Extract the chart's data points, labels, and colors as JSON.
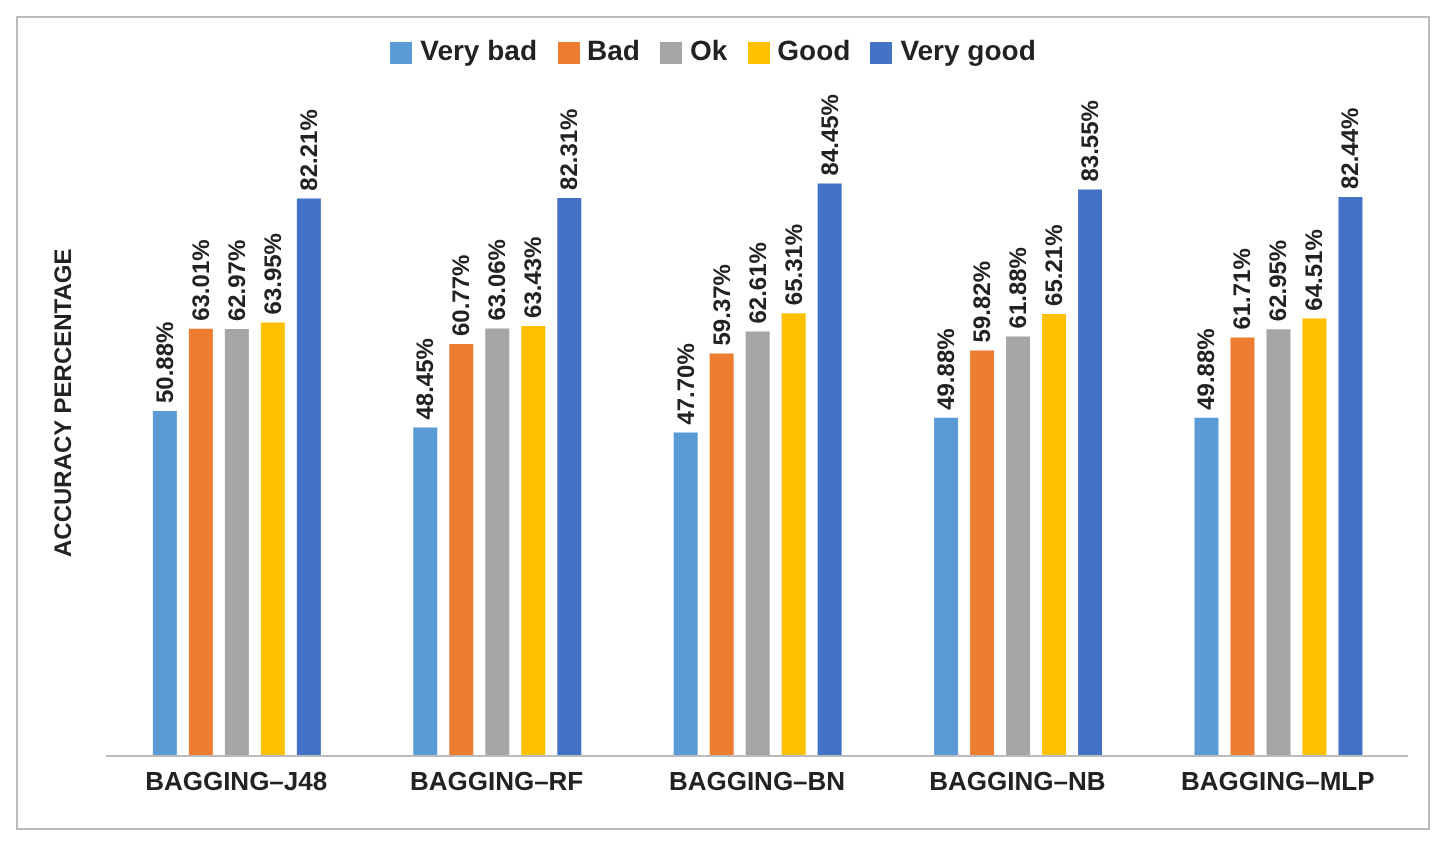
{
  "chart_data": {
    "type": "bar",
    "ylabel": "ACCURACY PERCENTAGE",
    "legend": "top",
    "relative": false,
    "categories": [
      "BAGGING–J48",
      "BAGGING–RF",
      "BAGGING–BN",
      "BAGGING–NB",
      "BAGGING–MLP"
    ],
    "series": [
      {
        "name": "Very bad",
        "color": "#5b9bd5",
        "values": [
          50.88,
          48.45,
          47.7,
          49.88,
          49.88
        ],
        "value_labels": [
          "50.88%",
          "48.45%",
          "47.70%",
          "49.88%",
          "49.88%"
        ]
      },
      {
        "name": "Bad",
        "color": "#ed7d31",
        "values": [
          63.01,
          60.77,
          59.37,
          59.82,
          61.71
        ],
        "value_labels": [
          "63.01%",
          "60.77%",
          "59.37%",
          "59.82%",
          "61.71%"
        ]
      },
      {
        "name": "Ok",
        "color": "#a5a5a5",
        "values": [
          62.97,
          63.06,
          62.61,
          61.88,
          62.95
        ],
        "value_labels": [
          "62.97%",
          "63.06%",
          "62.61%",
          "61.88%",
          "62.95%"
        ]
      },
      {
        "name": "Good",
        "color": "#ffc000",
        "values": [
          63.95,
          63.43,
          65.31,
          65.21,
          64.51
        ],
        "value_labels": [
          "63.95%",
          "63.43%",
          "65.31%",
          "65.21%",
          "64.51%"
        ]
      },
      {
        "name": "Very good",
        "color": "#4472c4",
        "values": [
          82.21,
          82.31,
          84.45,
          83.55,
          82.44
        ],
        "value_labels": [
          "82.21%",
          "82.31%",
          "84.45%",
          "83.55%",
          "82.44%"
        ]
      }
    ]
  }
}
